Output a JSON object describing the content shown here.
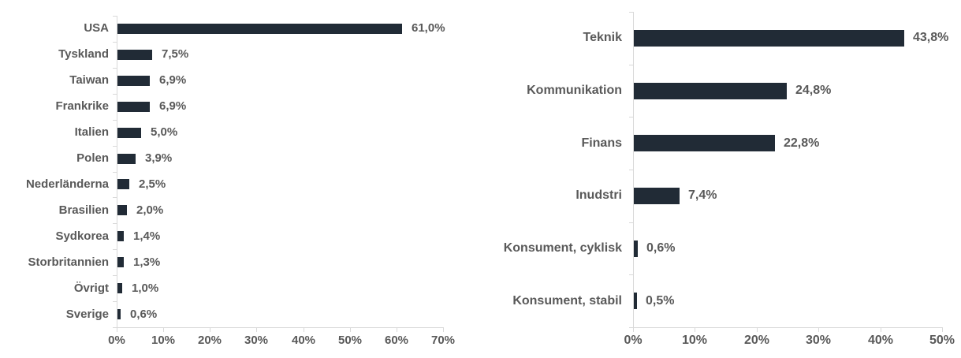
{
  "canvas": {
    "background": "#ffffff"
  },
  "chart_data": [
    {
      "type": "bar",
      "orientation": "horizontal",
      "title": "",
      "categories": [
        "USA",
        "Tyskland",
        "Taiwan",
        "Frankrike",
        "Italien",
        "Polen",
        "Nederländerna",
        "Brasilien",
        "Sydkorea",
        "Storbritannien",
        "Övrigt",
        "Sverige"
      ],
      "values": [
        61.0,
        7.5,
        6.9,
        6.9,
        5.0,
        3.9,
        2.5,
        2.0,
        1.4,
        1.3,
        1.0,
        0.6
      ],
      "value_labels": [
        "61,0%",
        "7,5%",
        "6,9%",
        "6,9%",
        "5,0%",
        "3,9%",
        "2,5%",
        "2,0%",
        "1,4%",
        "1,3%",
        "1,0%",
        "0,6%"
      ],
      "xlabel": "",
      "ylabel": "",
      "xlim": [
        0,
        70
      ],
      "x_tick_step": 10,
      "x_tick_labels": [
        "0%",
        "10%",
        "20%",
        "30%",
        "40%",
        "50%",
        "60%",
        "70%"
      ],
      "grid": false,
      "legend": "none",
      "bar_color": "#212b36",
      "axis_color": "#d9d9d9",
      "text_color": "#595959"
    },
    {
      "type": "bar",
      "orientation": "horizontal",
      "title": "",
      "categories": [
        "Teknik",
        "Kommunikation",
        "Finans",
        "Inudstri",
        "Konsument, cyklisk",
        "Konsument, stabil"
      ],
      "values": [
        43.8,
        24.8,
        22.8,
        7.4,
        0.6,
        0.5
      ],
      "value_labels": [
        "43,8%",
        "24,8%",
        "22,8%",
        "7,4%",
        "0,6%",
        "0,5%"
      ],
      "xlabel": "",
      "ylabel": "",
      "xlim": [
        0,
        50
      ],
      "x_tick_step": 10,
      "x_tick_labels": [
        "0%",
        "10%",
        "20%",
        "30%",
        "40%",
        "50%"
      ],
      "grid": false,
      "legend": "none",
      "bar_color": "#212b36",
      "axis_color": "#d9d9d9",
      "text_color": "#595959"
    }
  ]
}
